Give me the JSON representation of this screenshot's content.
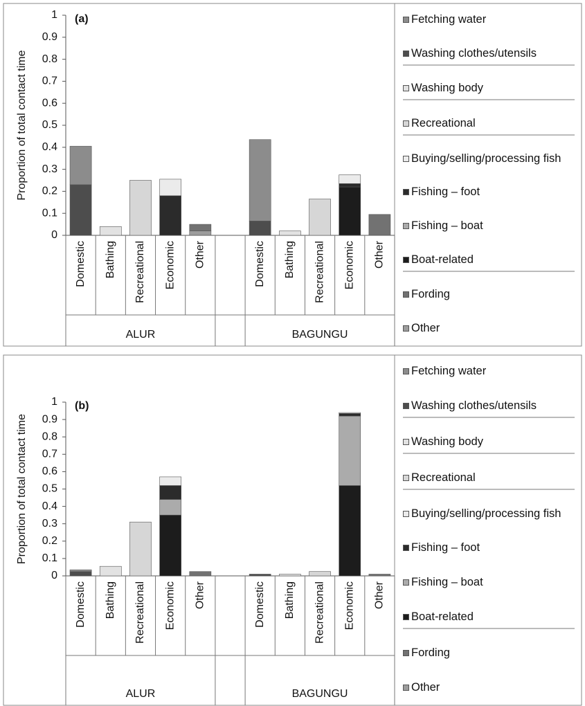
{
  "chart_data": [
    {
      "type": "bar",
      "stacked": true,
      "panel_label": "(a)",
      "y_label": "Proportion of total contact time",
      "categories": [
        "Domestic",
        "Bathing",
        "Recreational",
        "Economic",
        "Other",
        null,
        "Domestic",
        "Bathing",
        "Recreational",
        "Economic",
        "Other"
      ],
      "groups": [
        "ALUR",
        "BAGUNGU"
      ],
      "ylim": [
        0,
        1
      ],
      "yticks": [
        0,
        0.1,
        0.2,
        0.3,
        0.4,
        0.5,
        0.6,
        0.7,
        0.8,
        0.9,
        1
      ],
      "series": [
        {
          "name": "Fetching water",
          "color": "#8c8c8c",
          "values": [
            0.175,
            0,
            0,
            0,
            0,
            null,
            0.37,
            0,
            0,
            0,
            0
          ]
        },
        {
          "name": "Washing clothes/utensils",
          "color": "#4d4d4d",
          "values": [
            0.23,
            0,
            0,
            0,
            0,
            null,
            0.065,
            0,
            0,
            0,
            0
          ]
        },
        {
          "name": "Washing body",
          "color": "#e2e2e2",
          "values": [
            0,
            0.04,
            0,
            0,
            0,
            null,
            0,
            0.02,
            0,
            0,
            0
          ]
        },
        {
          "name": "Recreational",
          "color": "#d6d6d6",
          "values": [
            0,
            0,
            0.25,
            0,
            0,
            null,
            0,
            0,
            0.165,
            0,
            0
          ]
        },
        {
          "name": "Buying/selling/processing fish",
          "color": "#ebebeb",
          "values": [
            0,
            0,
            0,
            0.075,
            0,
            null,
            0,
            0,
            0,
            0.04,
            0
          ]
        },
        {
          "name": "Fishing – foot",
          "color": "#2b2b2b",
          "values": [
            0,
            0,
            0,
            0.18,
            0,
            null,
            0,
            0,
            0,
            0.015,
            0
          ]
        },
        {
          "name": "Fishing – boat",
          "color": "#ababab",
          "values": [
            0,
            0,
            0,
            0,
            0,
            null,
            0,
            0,
            0,
            0,
            0
          ]
        },
        {
          "name": "Boat-related",
          "color": "#1c1c1c",
          "values": [
            0,
            0,
            0,
            0,
            0,
            null,
            0,
            0,
            0,
            0.22,
            0
          ]
        },
        {
          "name": "Fording",
          "color": "#727272",
          "values": [
            0,
            0,
            0,
            0,
            0.03,
            null,
            0,
            0,
            0,
            0,
            0.095
          ]
        },
        {
          "name": "Other",
          "color": "#9c9c9c",
          "values": [
            0,
            0,
            0,
            0,
            0.02,
            null,
            0,
            0,
            0,
            0,
            0
          ]
        }
      ]
    },
    {
      "type": "bar",
      "stacked": true,
      "panel_label": "(b)",
      "y_label": "Proportion of total contact time",
      "categories": [
        "Domestic",
        "Bathing",
        "Recreational",
        "Economic",
        "Other",
        null,
        "Domestic",
        "Bathing",
        "Recreational",
        "Economic",
        "Other"
      ],
      "groups": [
        "ALUR",
        "BAGUNGU"
      ],
      "ylim": [
        0,
        1
      ],
      "yticks": [
        0,
        0.1,
        0.2,
        0.3,
        0.4,
        0.5,
        0.6,
        0.7,
        0.8,
        0.9,
        1
      ],
      "series": [
        {
          "name": "Fetching water",
          "color": "#8c8c8c",
          "values": [
            0.01,
            0,
            0,
            0,
            0,
            null,
            0,
            0,
            0,
            0,
            0
          ]
        },
        {
          "name": "Washing clothes/utensils",
          "color": "#4d4d4d",
          "values": [
            0.025,
            0,
            0,
            0,
            0,
            null,
            0.01,
            0,
            0,
            0,
            0
          ]
        },
        {
          "name": "Washing body",
          "color": "#e2e2e2",
          "values": [
            0,
            0.055,
            0,
            0,
            0,
            null,
            0,
            0.01,
            0,
            0,
            0
          ]
        },
        {
          "name": "Recreational",
          "color": "#d6d6d6",
          "values": [
            0,
            0,
            0.31,
            0,
            0,
            null,
            0,
            0,
            0.025,
            0,
            0
          ]
        },
        {
          "name": "Buying/selling/processing fish",
          "color": "#ebebeb",
          "values": [
            0,
            0,
            0,
            0.05,
            0,
            null,
            0,
            0,
            0,
            0.005,
            0
          ]
        },
        {
          "name": "Fishing – foot",
          "color": "#2b2b2b",
          "values": [
            0,
            0,
            0,
            0.08,
            0,
            null,
            0,
            0,
            0,
            0.015,
            0
          ]
        },
        {
          "name": "Fishing – boat",
          "color": "#ababab",
          "values": [
            0,
            0,
            0,
            0.09,
            0,
            null,
            0,
            0,
            0,
            0.4,
            0
          ]
        },
        {
          "name": "Boat-related",
          "color": "#1c1c1c",
          "values": [
            0,
            0,
            0,
            0.35,
            0,
            null,
            0,
            0,
            0,
            0.52,
            0
          ]
        },
        {
          "name": "Fording",
          "color": "#727272",
          "values": [
            0,
            0,
            0,
            0,
            0.025,
            null,
            0,
            0,
            0,
            0,
            0.01
          ]
        },
        {
          "name": "Other",
          "color": "#9c9c9c",
          "values": [
            0,
            0,
            0,
            0,
            0,
            null,
            0,
            0,
            0,
            0,
            0
          ]
        }
      ]
    }
  ]
}
